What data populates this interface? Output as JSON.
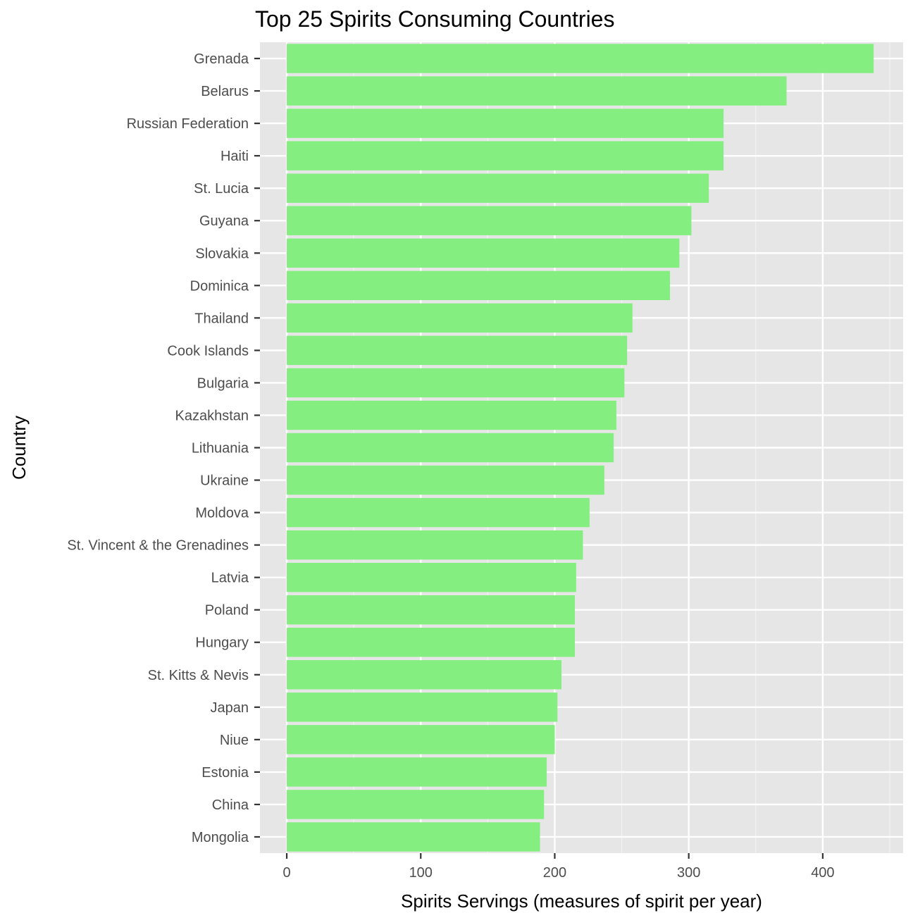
{
  "chart_data": {
    "type": "bar",
    "orientation": "horizontal",
    "title": "Top 25 Spirits Consuming Countries",
    "xlabel": "Spirits Servings (measures of spirit per year)",
    "ylabel": "Country",
    "xlim": [
      -20,
      460
    ],
    "x_ticks": [
      0,
      100,
      200,
      300,
      400
    ],
    "grid": true,
    "bar_color": "#85ee80",
    "panel_color": "#e6e6e6",
    "categories": [
      "Grenada",
      "Belarus",
      "Russian Federation",
      "Haiti",
      "St. Lucia",
      "Guyana",
      "Slovakia",
      "Dominica",
      "Thailand",
      "Cook Islands",
      "Bulgaria",
      "Kazakhstan",
      "Lithuania",
      "Ukraine",
      "Moldova",
      "St. Vincent & the Grenadines",
      "Latvia",
      "Poland",
      "Hungary",
      "St. Kitts & Nevis",
      "Japan",
      "Niue",
      "Estonia",
      "China",
      "Mongolia"
    ],
    "values": [
      438,
      373,
      326,
      326,
      315,
      302,
      293,
      286,
      258,
      254,
      252,
      246,
      244,
      237,
      226,
      221,
      216,
      215,
      215,
      205,
      202,
      200,
      194,
      192,
      189
    ]
  }
}
